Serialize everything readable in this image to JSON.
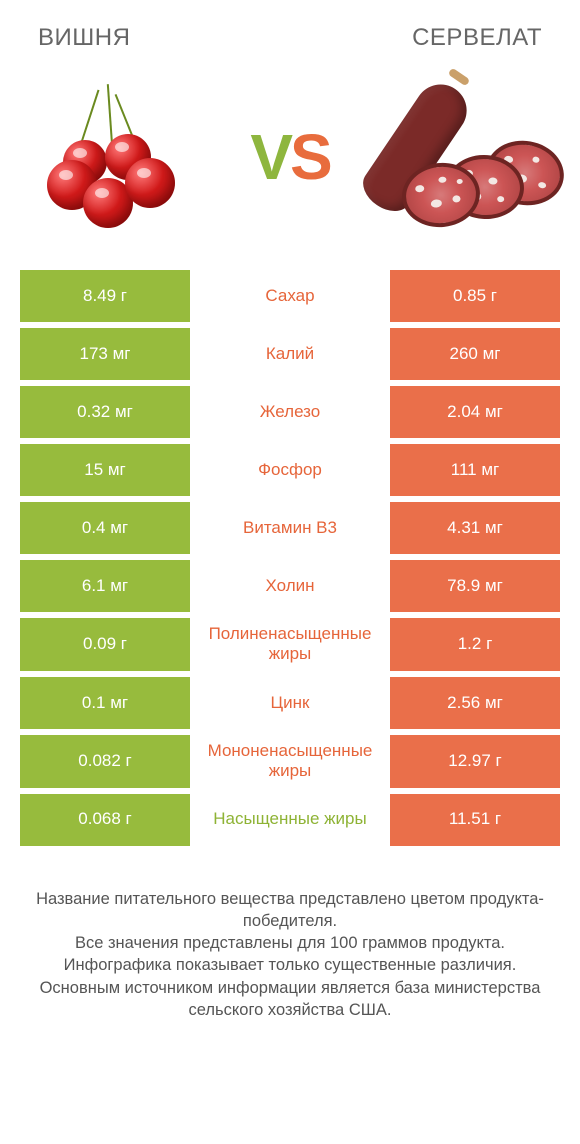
{
  "header": {
    "left_title": "ВИШНЯ",
    "right_title": "СЕРВЕЛАТ",
    "vs_v": "V",
    "vs_s": "S"
  },
  "colors": {
    "left_bar": "#97bb3d",
    "right_bar": "#ea6f4a",
    "mid_green": "#8eb335",
    "mid_orange": "#e6653a",
    "background": "#ffffff",
    "text": "#555555"
  },
  "rows": [
    {
      "left": "8.49 г",
      "label": "Сахар",
      "right": "0.85 г",
      "winner": "orange"
    },
    {
      "left": "173 мг",
      "label": "Калий",
      "right": "260 мг",
      "winner": "orange"
    },
    {
      "left": "0.32 мг",
      "label": "Железо",
      "right": "2.04 мг",
      "winner": "orange"
    },
    {
      "left": "15 мг",
      "label": "Фосфор",
      "right": "111 мг",
      "winner": "orange"
    },
    {
      "left": "0.4 мг",
      "label": "Витамин B3",
      "right": "4.31 мг",
      "winner": "orange"
    },
    {
      "left": "6.1 мг",
      "label": "Холин",
      "right": "78.9 мг",
      "winner": "orange"
    },
    {
      "left": "0.09 г",
      "label": "Полиненасыщенные жиры",
      "right": "1.2 г",
      "winner": "orange"
    },
    {
      "left": "0.1 мг",
      "label": "Цинк",
      "right": "2.56 мг",
      "winner": "orange"
    },
    {
      "left": "0.082 г",
      "label": "Мононенасыщенные жиры",
      "right": "12.97 г",
      "winner": "orange"
    },
    {
      "left": "0.068 г",
      "label": "Насыщенные жиры",
      "right": "11.51 г",
      "winner": "green"
    }
  ],
  "footer": {
    "l1": "Название питательного вещества представлено цветом продукта-победителя.",
    "l2": "Все значения представлены для 100 граммов продукта.",
    "l3": "Инфографика показывает только существенные различия.",
    "l4": "Основным источником информации является база министерства сельского хозяйства США."
  }
}
